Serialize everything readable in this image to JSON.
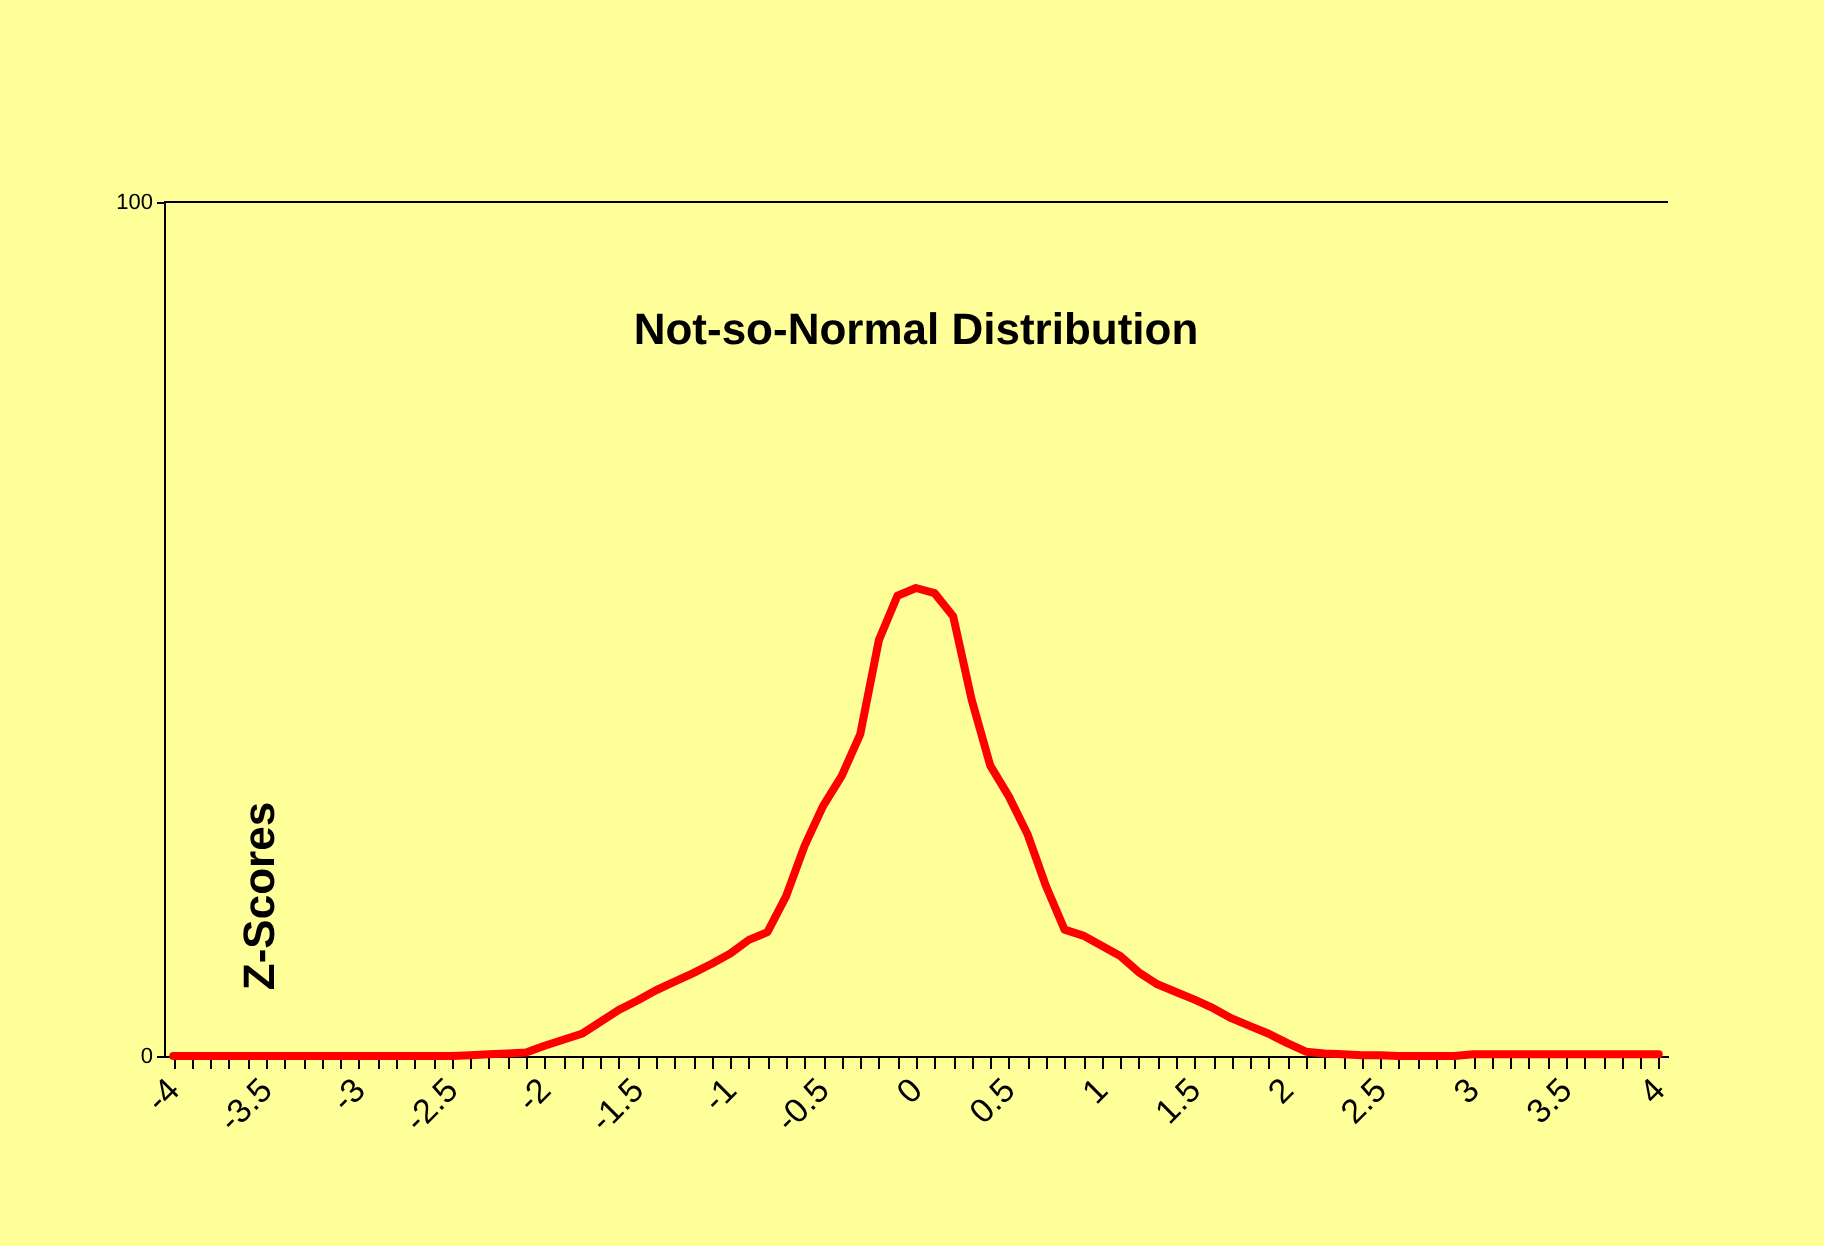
{
  "chart_data": {
    "type": "line",
    "title": "Not-so-Normal Distribution",
    "annotations": [
      "Z-Scores"
    ],
    "x": [
      -4.0,
      -3.9,
      -3.8,
      -3.7,
      -3.6,
      -3.5,
      -3.4,
      -3.3,
      -3.2,
      -3.1,
      -3.0,
      -2.9,
      -2.8,
      -2.7,
      -2.6,
      -2.5,
      -2.4,
      -2.3,
      -2.2,
      -2.1,
      -2.0,
      -1.9,
      -1.8,
      -1.7,
      -1.6,
      -1.5,
      -1.4,
      -1.3,
      -1.2,
      -1.1,
      -1.0,
      -0.9,
      -0.8,
      -0.7,
      -0.6,
      -0.5,
      -0.4,
      -0.3,
      -0.2,
      -0.1,
      0.0,
      0.1,
      0.2,
      0.3,
      0.4,
      0.5,
      0.6,
      0.7,
      0.8,
      0.9,
      1.0,
      1.1,
      1.2,
      1.3,
      1.4,
      1.5,
      1.6,
      1.7,
      1.8,
      1.9,
      2.0,
      2.1,
      2.2,
      2.3,
      2.4,
      2.5,
      2.6,
      2.7,
      2.8,
      2.9,
      3.0,
      3.1,
      3.2,
      3.3,
      3.4,
      3.5,
      3.6,
      3.7,
      3.8,
      3.9,
      4.0
    ],
    "series": [
      {
        "color": "#ff0000",
        "values": [
          0,
          0,
          0,
          0,
          0,
          0,
          0,
          0,
          0,
          0,
          0,
          0,
          0,
          0,
          0,
          0,
          0.1,
          0.2,
          0.3,
          0.4,
          1.2,
          1.9,
          2.6,
          4,
          5.4,
          6.5,
          7.7,
          8.7,
          9.7,
          10.8,
          12,
          13.6,
          14.5,
          18.7,
          24.6,
          29.3,
          32.8,
          37.7,
          48.7,
          53.9,
          54.8,
          54.2,
          51.5,
          41.7,
          34,
          30.4,
          26,
          19.9,
          14.8,
          14.1,
          12.9,
          11.7,
          9.8,
          8.4,
          7.5,
          6.6,
          5.6,
          4.4,
          3.5,
          2.6,
          1.5,
          0.5,
          0.3,
          0.2,
          0.1,
          0.1,
          0,
          0,
          0,
          0,
          0.2,
          0.2,
          0.2,
          0.2,
          0.2,
          0.2,
          0.2,
          0.2,
          0.2,
          0.2,
          0.2
        ]
      }
    ],
    "xlim": [
      -4.05,
      4.05
    ],
    "ylim": [
      0,
      100
    ],
    "yticks": [
      0,
      100
    ],
    "xticks": [
      -4,
      {
        "value": -3.9,
        "label": null
      },
      {
        "value": -3.8,
        "label": null
      },
      {
        "value": -3.7,
        "label": null
      },
      {
        "value": -3.6,
        "label": null
      },
      -3.5,
      {
        "value": -3.4,
        "label": null
      },
      {
        "value": -3.3,
        "label": null
      },
      {
        "value": -3.2,
        "label": null
      },
      {
        "value": -3.1,
        "label": null
      },
      -3,
      {
        "value": -2.9,
        "label": null
      },
      {
        "value": -2.8,
        "label": null
      },
      {
        "value": -2.7,
        "label": null
      },
      {
        "value": -2.6,
        "label": null
      },
      -2.5,
      {
        "value": -2.4,
        "label": null
      },
      {
        "value": -2.3,
        "label": null
      },
      {
        "value": -2.2,
        "label": null
      },
      {
        "value": -2.1,
        "label": null
      },
      -2,
      {
        "value": -1.9,
        "label": null
      },
      {
        "value": -1.8,
        "label": null
      },
      {
        "value": -1.7,
        "label": null
      },
      {
        "value": -1.6,
        "label": null
      },
      -1.5,
      {
        "value": -1.4,
        "label": null
      },
      {
        "value": -1.3,
        "label": null
      },
      {
        "value": -1.2,
        "label": null
      },
      {
        "value": -1.1,
        "label": null
      },
      -1,
      {
        "value": -0.9,
        "label": null
      },
      {
        "value": -0.8,
        "label": null
      },
      {
        "value": -0.7,
        "label": null
      },
      {
        "value": -0.6,
        "label": null
      },
      -0.5,
      {
        "value": -0.4,
        "label": null
      },
      {
        "value": -0.3,
        "label": null
      },
      {
        "value": -0.2,
        "label": null
      },
      {
        "value": -0.1,
        "label": null
      },
      0,
      {
        "value": 0.1,
        "label": null
      },
      {
        "value": 0.2,
        "label": null
      },
      {
        "value": 0.3,
        "label": null
      },
      {
        "value": 0.4,
        "label": null
      },
      0.5,
      {
        "value": 0.6,
        "label": null
      },
      {
        "value": 0.7,
        "label": null
      },
      {
        "value": 0.8,
        "label": null
      },
      {
        "value": 0.9,
        "label": null
      },
      1,
      {
        "value": 1.1,
        "label": null
      },
      {
        "value": 1.2,
        "label": null
      },
      {
        "value": 1.3,
        "label": null
      },
      {
        "value": 1.4,
        "label": null
      },
      1.5,
      {
        "value": 1.6,
        "label": null
      },
      {
        "value": 1.7,
        "label": null
      },
      {
        "value": 1.8,
        "label": null
      },
      {
        "value": 1.9,
        "label": null
      },
      2,
      {
        "value": 2.1,
        "label": null
      },
      {
        "value": 2.2,
        "label": null
      },
      {
        "value": 2.3,
        "label": null
      },
      {
        "value": 2.4,
        "label": null
      },
      2.5,
      {
        "value": 2.6,
        "label": null
      },
      {
        "value": 2.7,
        "label": null
      },
      {
        "value": 2.8,
        "label": null
      },
      {
        "value": 2.9,
        "label": null
      },
      3,
      {
        "value": 3.1,
        "label": null
      },
      {
        "value": 3.2,
        "label": null
      },
      {
        "value": 3.3,
        "label": null
      },
      {
        "value": 3.4,
        "label": null
      },
      3.5,
      {
        "value": 3.6,
        "label": null
      },
      {
        "value": 3.7,
        "label": null
      },
      {
        "value": 3.8,
        "label": null
      },
      {
        "value": 3.9,
        "label": null
      },
      4
    ],
    "grid": false,
    "marker": "none",
    "line_style": "solid"
  }
}
